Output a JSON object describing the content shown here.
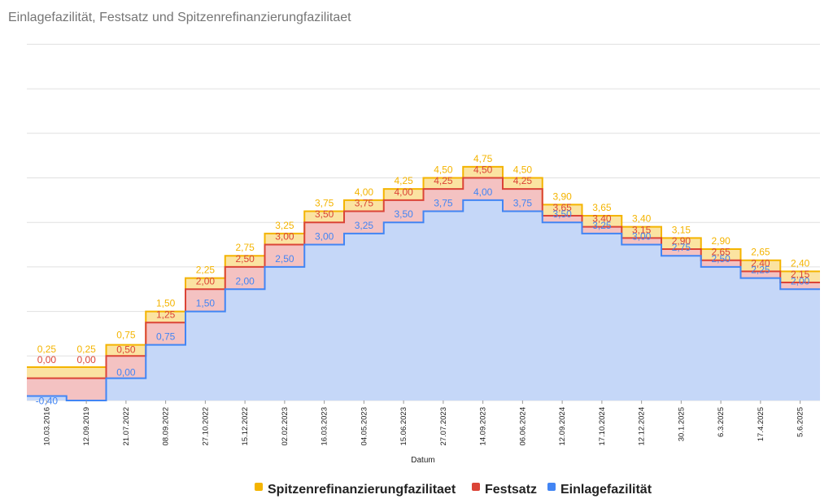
{
  "chart_data": {
    "type": "area",
    "title": "Einlagefazilität, Festsatz und Spitzenrefinanzierungfazilitaet",
    "xlabel": "Datum",
    "ylabel": "",
    "ylim": [
      -0.5,
      8.0
    ],
    "grid": true,
    "legend_position": "bottom",
    "categories": [
      "10.03.2016",
      "12.09.2019",
      "21.07.2022",
      "08.09.2022",
      "27.10.2022",
      "15.12.2022",
      "02.02.2023",
      "16.03.2023",
      "04.05.2023",
      "15.06.2023",
      "27.07.2023",
      "14.09.2023",
      "06.06.2024",
      "12.09.2024",
      "17.10.2024",
      "12.12.2024",
      "30.1.2025",
      "6.3.2025",
      "17.4.2025",
      "5.6.2025"
    ],
    "series": [
      {
        "name": "Spitzenrefinanzierungfazilitaet",
        "color": "#f4b400",
        "fill": "#fbe3a1",
        "values": [
          0.25,
          0.25,
          0.75,
          1.5,
          2.25,
          2.75,
          3.25,
          3.75,
          4.0,
          4.25,
          4.5,
          4.75,
          4.5,
          3.9,
          3.65,
          3.4,
          3.15,
          2.9,
          2.65,
          2.4
        ],
        "labels": [
          "0,25",
          "0,25",
          "0,75",
          "1,50",
          "2,25",
          "2,75",
          "3,25",
          "3,75",
          "4,00",
          "4,25",
          "4,50",
          "4,75",
          "4,50",
          "3,90",
          "3,65",
          "3,40",
          "3,15",
          "2,90",
          "2,65",
          "2,40"
        ]
      },
      {
        "name": "Festsatz",
        "color": "#db4437",
        "fill": "#f4c2c2",
        "values": [
          0.0,
          0.0,
          0.5,
          1.25,
          2.0,
          2.5,
          3.0,
          3.5,
          3.75,
          4.0,
          4.25,
          4.5,
          4.25,
          3.65,
          3.4,
          3.15,
          2.9,
          2.65,
          2.4,
          2.15
        ],
        "labels": [
          "0,00",
          "0,00",
          "0,50",
          "1,25",
          "2,00",
          "2,50",
          "3,00",
          "3,50",
          "3,75",
          "4,00",
          "4,25",
          "4,50",
          "4,25",
          "3,65",
          "3,40",
          "3,15",
          "2,90",
          "2,65",
          "2,40",
          "2,15"
        ]
      },
      {
        "name": "Einlagefazilität",
        "color": "#4285f4",
        "fill": "#c5d7f8",
        "values": [
          -0.4,
          -0.5,
          0.0,
          0.75,
          1.5,
          2.0,
          2.5,
          3.0,
          3.25,
          3.5,
          3.75,
          4.0,
          3.75,
          3.5,
          3.25,
          3.0,
          2.75,
          2.5,
          2.25,
          2.0
        ],
        "labels": [
          "-0,40",
          "",
          "0,00",
          "0,75",
          "1,50",
          "2,00",
          "2,50",
          "3,00",
          "3,25",
          "3,50",
          "3,75",
          "4,00",
          "3,75",
          "3,50",
          "3,25",
          "3,00",
          "2,75",
          "2,50",
          "2,25",
          "2,00"
        ]
      }
    ]
  }
}
